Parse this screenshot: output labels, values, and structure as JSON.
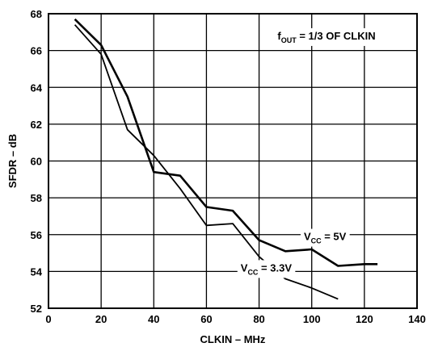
{
  "chart_data": {
    "type": "line",
    "xlabel": "CLKIN – MHz",
    "ylabel": "SFDR – dB",
    "xlim": [
      0,
      140
    ],
    "ylim": [
      52,
      68
    ],
    "x_ticks": [
      0,
      20,
      40,
      60,
      80,
      100,
      120,
      140
    ],
    "y_ticks": [
      52,
      54,
      56,
      58,
      60,
      62,
      64,
      66,
      68
    ],
    "x_tick_labels": [
      "0",
      "20",
      "40",
      "60",
      "80",
      "100",
      "120",
      "140"
    ],
    "y_tick_labels": [
      "52",
      "54",
      "56",
      "58",
      "60",
      "62",
      "64",
      "66",
      "68"
    ],
    "grid": true,
    "annotation": {
      "base": "f",
      "sub": "OUT",
      "rest": " = 1/3 OF CLKIN"
    },
    "series": [
      {
        "name": "V_CC = 5V",
        "label_base": "V",
        "label_sub": "CC",
        "label_rest": " = 5V",
        "stroke_width": 2.6,
        "x": [
          10,
          20,
          30,
          40,
          50,
          60,
          70,
          80,
          90,
          100,
          110,
          120,
          125
        ],
        "y": [
          67.7,
          66.3,
          63.5,
          59.4,
          59.2,
          57.5,
          57.3,
          55.7,
          55.1,
          55.2,
          54.3,
          54.4,
          54.4
        ],
        "label_at": [
          97,
          55.7
        ]
      },
      {
        "name": "V_CC = 3.3V",
        "label_base": "V",
        "label_sub": "CC",
        "label_rest": " = 3.3V",
        "stroke_width": 1.8,
        "x": [
          10,
          20,
          30,
          40,
          50,
          60,
          70,
          80,
          90,
          100,
          110
        ],
        "y": [
          67.4,
          65.8,
          61.7,
          60.3,
          58.5,
          56.5,
          56.6,
          54.8,
          53.6,
          53.1,
          52.5
        ],
        "label_at": [
          73,
          54.0
        ]
      }
    ]
  }
}
